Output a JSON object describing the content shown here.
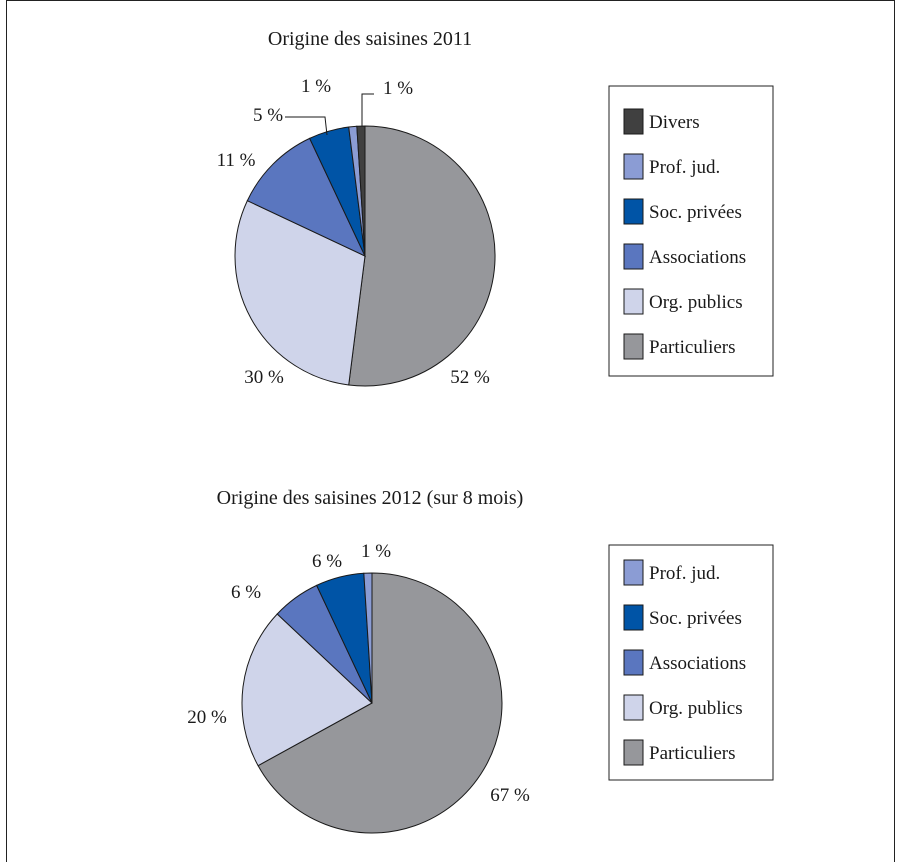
{
  "chart_data": [
    {
      "type": "pie",
      "title": "Origine des saisines 2011",
      "slices": [
        {
          "name": "Particuliers",
          "value": 52,
          "label": "52 %",
          "color": "#96979b"
        },
        {
          "name": "Org. publics",
          "value": 30,
          "label": "30 %",
          "color": "#cfd4ea"
        },
        {
          "name": "Associations",
          "value": 11,
          "label": "11 %",
          "color": "#5a76bf"
        },
        {
          "name": "Soc. privées",
          "value": 5,
          "label": "5 %",
          "color": "#0054a6"
        },
        {
          "name": "Prof. jud.",
          "value": 1,
          "label": "1 %",
          "color": "#8b9cd4"
        },
        {
          "name": "Divers",
          "value": 1,
          "label": "1 %",
          "color": "#404040"
        }
      ],
      "legend": [
        "Divers",
        "Prof. jud.",
        "Soc. privées",
        "Associations",
        "Org. publics",
        "Particuliers"
      ],
      "legend_position": "right"
    },
    {
      "type": "pie",
      "title": "Origine des saisines 2012 (sur 8 mois)",
      "slices": [
        {
          "name": "Particuliers",
          "value": 67,
          "label": "67 %",
          "color": "#96979b"
        },
        {
          "name": "Org. publics",
          "value": 20,
          "label": "20 %",
          "color": "#cfd4ea"
        },
        {
          "name": "Associations",
          "value": 6,
          "label": "6 %",
          "color": "#5a76bf"
        },
        {
          "name": "Soc. privées",
          "value": 6,
          "label": "6 %",
          "color": "#0054a6"
        },
        {
          "name": "Prof. jud.",
          "value": 1,
          "label": "1 %",
          "color": "#8b9cd4"
        }
      ],
      "legend": [
        "Prof. jud.",
        "Soc. privées",
        "Associations",
        "Org. publics",
        "Particuliers"
      ],
      "legend_position": "right"
    }
  ]
}
